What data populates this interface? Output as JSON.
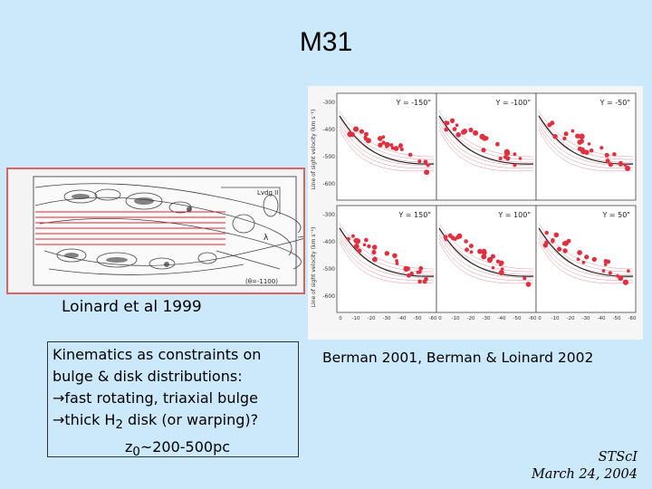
{
  "slide": {
    "title": "M31",
    "left_caption": "Loinard et al 1999",
    "right_caption": "Berman 2001, Berman & Loinard 2002",
    "textbox": {
      "line1": "Kinematics as constraints on",
      "line2": "bulge & disk distributions:",
      "arrow": "→",
      "line3": "fast rotating, triaxial bulge",
      "line4_pre": "thick H",
      "line4_sub": "2",
      "line4_post": " disk (or warping)?",
      "line5_pre": "z",
      "line5_sub": "0",
      "line5_post": "~200-500pc"
    },
    "credit": {
      "org": "STScI",
      "date": "March 24, 2004"
    }
  },
  "figure_right": {
    "ylabel_top": "Line of sight velocity (km s⁻¹)",
    "ylabel_bottom": "Line of sight velocity (km s⁻¹)",
    "yticks": [
      "-300",
      "-400",
      "-500",
      "-600"
    ],
    "xticks": [
      "0",
      "-10",
      "-20",
      "-30",
      "-40",
      "-50",
      "-60"
    ],
    "panel_labels": [
      "Y = -150\"",
      "Y = -100\"",
      "Y = -50\"",
      "Y = 150\"",
      "Y = 100\"",
      "Y = 50\""
    ]
  },
  "figure_left": {
    "labels": [
      "Lvdg II",
      "λ",
      "(θ=-1100)"
    ]
  },
  "colors": {
    "background": "#cce8fb",
    "accent_red": "#e03040"
  }
}
